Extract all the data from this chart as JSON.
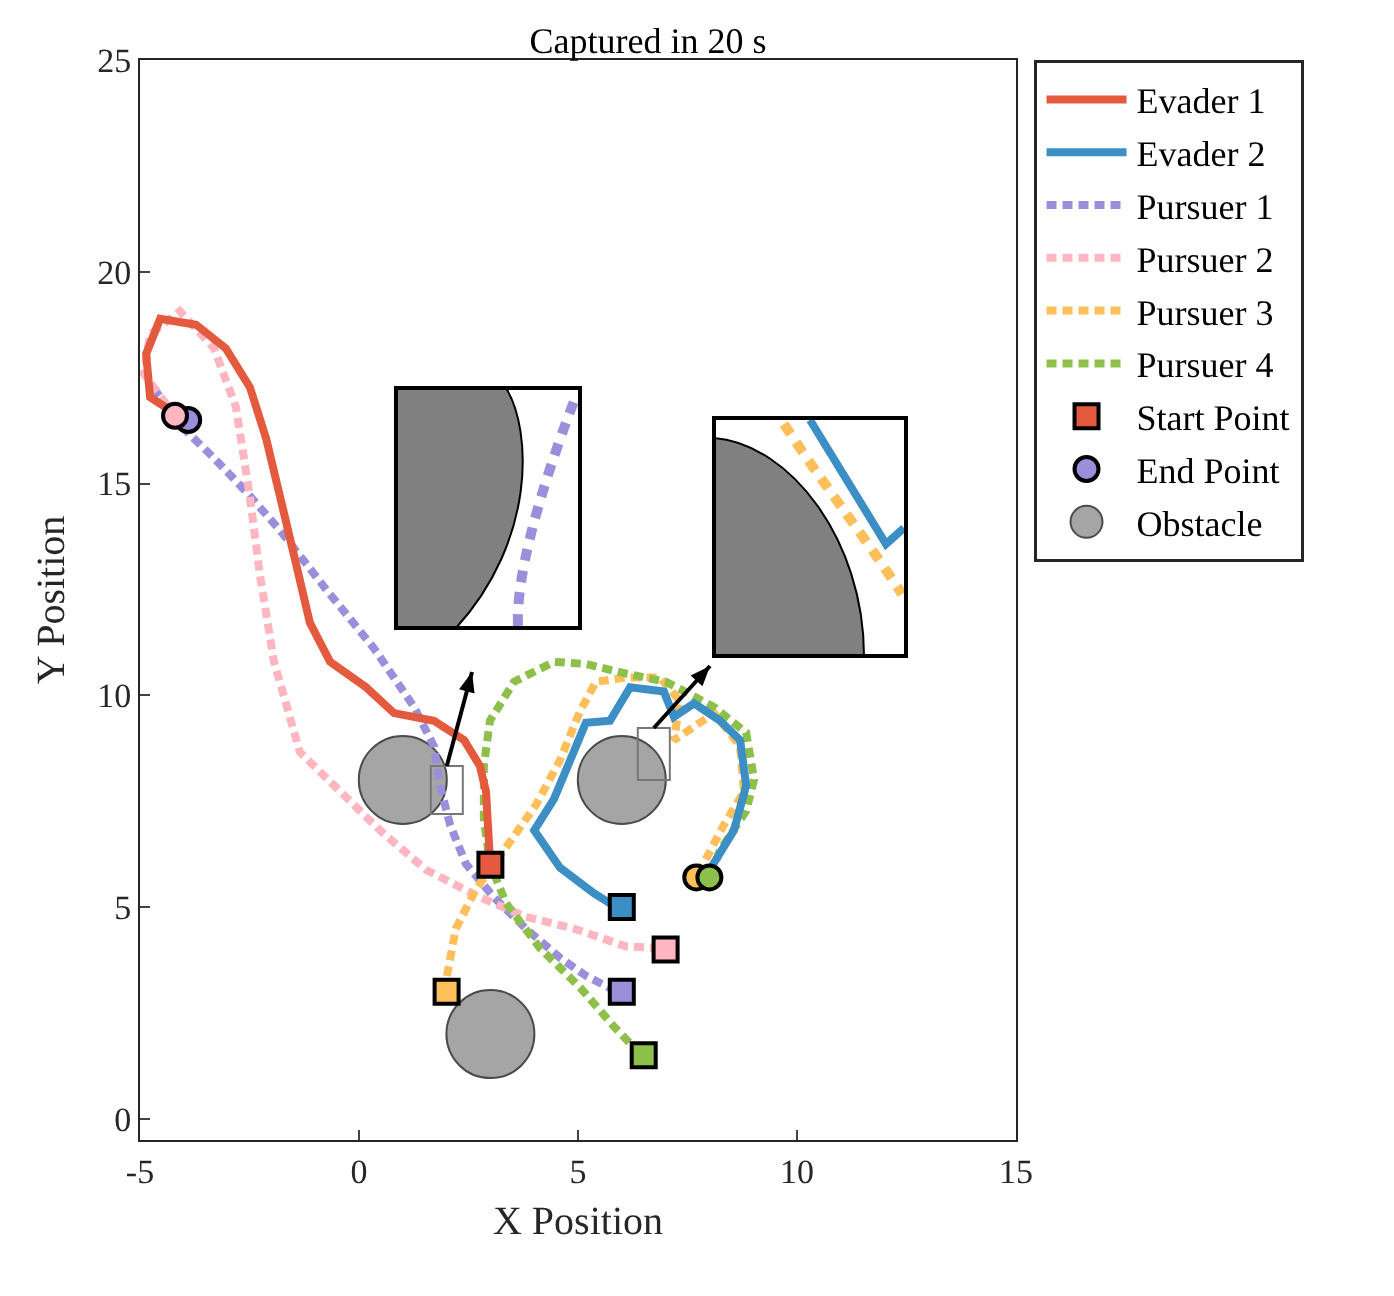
{
  "chart_data": {
    "type": "line",
    "title": "Captured in 20 s",
    "xlabel": "X Position",
    "ylabel": "Y Position",
    "xlim": [
      -5,
      15
    ],
    "xticks": [
      -5,
      0,
      5,
      10,
      15
    ],
    "ylim": [
      -0.5,
      25
    ],
    "yticks": [
      0,
      5,
      10,
      15,
      20,
      25
    ],
    "grid": false,
    "legend": "right",
    "series": [
      {
        "type": "bubble",
        "name": "Obstacle",
        "color": "#808080",
        "marker": "circle",
        "x": [
          1,
          6,
          3
        ],
        "values": [
          8,
          8,
          2
        ],
        "sizes": [
          1,
          1,
          1
        ]
      },
      {
        "name": "Evader 1",
        "color": "#e45a3e",
        "line_style": "solid",
        "x": [
          2.99,
          2.9,
          2.76,
          2.4,
          1.71,
          0.8,
          0.16,
          -0.66,
          -1.12,
          -1.48,
          -1.8,
          -2.12,
          -2.49,
          -3.04,
          -3.72,
          -4.54,
          -4.86,
          -4.77,
          -4.22,
          -4.0
        ],
        "values": [
          6.11,
          7.73,
          8.33,
          8.94,
          9.4,
          9.58,
          10.19,
          10.79,
          11.71,
          13.29,
          14.68,
          16.06,
          17.27,
          18.19,
          18.75,
          18.89,
          18.06,
          17.04,
          16.67,
          16.5
        ]
      },
      {
        "name": "Evader 2",
        "color": "#3b8fc4",
        "line_style": "solid",
        "x": [
          5.87,
          5.37,
          4.59,
          4.0,
          4.45,
          5.18,
          5.73,
          6.19,
          6.96,
          7.19,
          7.65,
          8.24,
          8.7,
          8.84,
          8.56,
          8.01
        ],
        "values": [
          5.0,
          5.32,
          5.93,
          6.81,
          7.55,
          9.35,
          9.4,
          10.19,
          10.09,
          9.49,
          9.81,
          9.4,
          8.94,
          7.87,
          6.81,
          5.88
        ]
      },
      {
        "name": "Pursuer 1",
        "color": "#9b8fdc",
        "line_style": "dotted",
        "x": [
          5.87,
          5.18,
          4.59,
          3.81,
          3.08,
          2.44,
          2.08,
          1.85,
          1.71,
          1.26,
          0.34,
          -0.75,
          -1.8,
          -2.58,
          -3.31,
          -4.0,
          -4.77
        ],
        "values": [
          3.01,
          3.38,
          3.8,
          4.49,
          5.23,
          6.02,
          6.94,
          7.87,
          8.8,
          9.72,
          11.11,
          12.5,
          13.89,
          14.81,
          15.6,
          16.3,
          17.36
        ]
      },
      {
        "name": "Pursuer 2",
        "color": "#ffb6c1",
        "line_style": "dotted",
        "x": [
          6.87,
          6.1,
          4.91,
          3.81,
          2.76,
          1.53,
          0.48,
          -1.35,
          -1.94,
          -2.26,
          -2.49,
          -2.81,
          -3.31,
          -4.09,
          -4.77,
          -4.91,
          -4.32
        ],
        "values": [
          4.03,
          4.07,
          4.49,
          4.77,
          5.23,
          5.88,
          6.81,
          8.66,
          10.79,
          12.82,
          14.68,
          16.81,
          18.19,
          19.07,
          18.52,
          17.59,
          16.76
        ]
      },
      {
        "name": "Pursuer 3",
        "color": "#fdbf5a",
        "line_style": "dotted",
        "x": [
          1.94,
          2.21,
          2.67,
          3.31,
          4.04,
          4.59,
          5.05,
          5.41,
          6.1,
          6.87,
          7.33,
          7.19,
          8.11,
          8.7,
          8.79,
          8.33,
          7.79
        ],
        "values": [
          3.0,
          4.49,
          5.42,
          6.34,
          7.41,
          8.47,
          9.63,
          10.32,
          10.42,
          10.42,
          9.86,
          8.94,
          9.58,
          8.8,
          7.73,
          6.94,
          5.88
        ]
      },
      {
        "name": "Pursuer 4",
        "color": "#8cc04a",
        "line_style": "dotted",
        "x": [
          6.42,
          5.82,
          5.05,
          4.13,
          3.36,
          2.99,
          2.85,
          2.85,
          2.99,
          3.54,
          4.45,
          5.18,
          6.1,
          7.01,
          8.11,
          8.84,
          9.02,
          8.84,
          8.24,
          8.0
        ],
        "values": [
          1.53,
          2.18,
          3.1,
          4.03,
          5.09,
          6.02,
          7.08,
          8.33,
          9.4,
          10.32,
          10.79,
          10.74,
          10.51,
          10.32,
          9.72,
          9.12,
          8.01,
          7.27,
          6.34,
          5.65
        ]
      },
      {
        "type": "scatter",
        "name": "Start Point",
        "marker": "square",
        "x": [
          3,
          6,
          6,
          7,
          2,
          6.5
        ],
        "values": [
          6,
          5,
          3,
          4,
          3,
          1.5
        ],
        "colors": [
          "#e45a3e",
          "#3b8fc4",
          "#9b8fdc",
          "#ffb6c1",
          "#fdbf5a",
          "#8cc04a"
        ]
      },
      {
        "type": "scatter",
        "name": "End Point",
        "marker": "circle",
        "x": [
          -3.9,
          -4.2,
          7.7,
          8.0
        ],
        "values": [
          16.5,
          16.6,
          5.7,
          5.7
        ],
        "colors": [
          "#9b8fdc",
          "#ffb6c1",
          "#fdbf5a",
          "#8cc04a"
        ]
      }
    ]
  }
}
